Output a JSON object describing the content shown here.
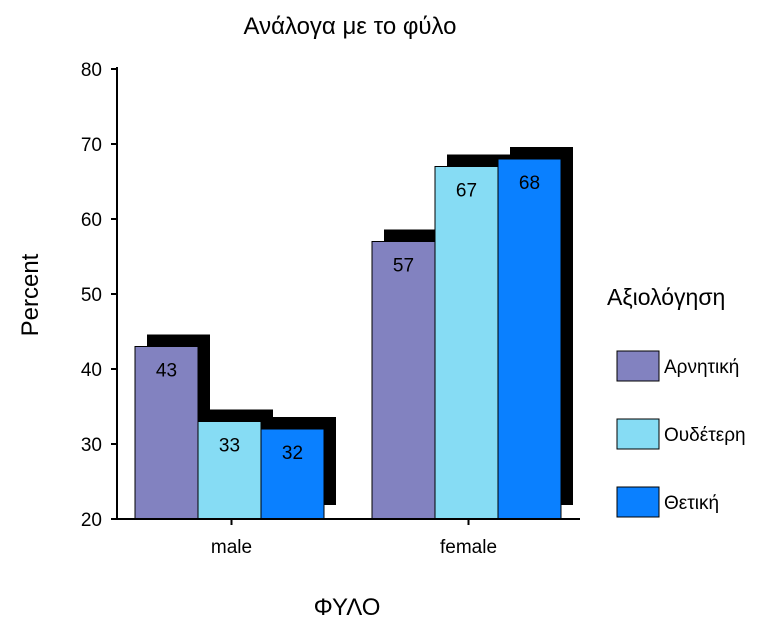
{
  "chart_data": {
    "type": "bar",
    "title": "Ανάλογα με το φύλο",
    "xlabel": "ΦΥΛΟ",
    "ylabel": "Percent",
    "categories": [
      "male",
      "female"
    ],
    "ylim": [
      20,
      80
    ],
    "yticks": [
      20,
      30,
      40,
      50,
      60,
      70,
      80
    ],
    "legend_title": "Αξιολόγηση",
    "legend_position": "right",
    "grid": false,
    "shadow_color": "#000000",
    "series": [
      {
        "name": "Αρνητική",
        "color": "#8282C0",
        "values": [
          43,
          57
        ],
        "labels": [
          "43",
          "57"
        ]
      },
      {
        "name": "Ουδέτερη",
        "color": "#86DCF4",
        "values": [
          33,
          67
        ],
        "labels": [
          "33",
          "67"
        ]
      },
      {
        "name": "Θετική",
        "color": "#0A80FF",
        "values": [
          32,
          68
        ],
        "labels": [
          "32",
          "68"
        ]
      }
    ]
  }
}
